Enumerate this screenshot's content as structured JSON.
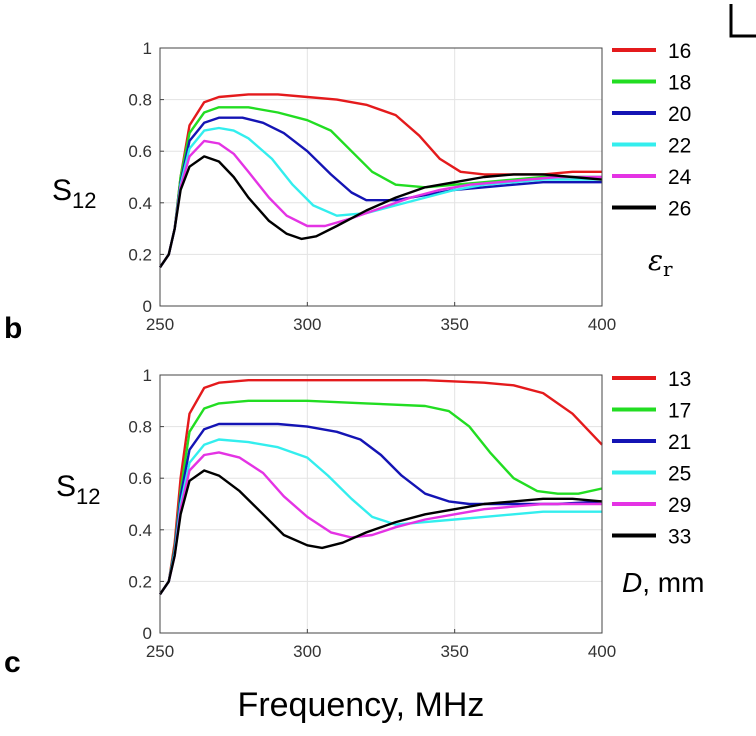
{
  "chart_data": [
    {
      "type": "line",
      "panel_label": "b",
      "ylabel_main": "S",
      "ylabel_sub": "12",
      "legend_title_symbol": "ε",
      "legend_title_sub": "r",
      "xlim": [
        250,
        400
      ],
      "ylim": [
        0,
        1
      ],
      "xticks": [
        250,
        300,
        350,
        400
      ],
      "yticks": [
        0,
        0.2,
        0.4,
        0.6,
        0.8,
        1
      ],
      "ytick_labels": [
        "0",
        "0.2",
        "0.4",
        "0.6",
        "0.8",
        "1"
      ],
      "grid": true,
      "legend_position": "right",
      "series": [
        {
          "name": "16",
          "color": "#e41a1c",
          "points": [
            [
              250,
              0.15
            ],
            [
              253,
              0.2
            ],
            [
              255,
              0.3
            ],
            [
              257,
              0.5
            ],
            [
              260,
              0.7
            ],
            [
              265,
              0.79
            ],
            [
              270,
              0.81
            ],
            [
              280,
              0.82
            ],
            [
              290,
              0.82
            ],
            [
              300,
              0.81
            ],
            [
              310,
              0.8
            ],
            [
              320,
              0.78
            ],
            [
              330,
              0.74
            ],
            [
              338,
              0.66
            ],
            [
              345,
              0.57
            ],
            [
              352,
              0.52
            ],
            [
              360,
              0.51
            ],
            [
              370,
              0.51
            ],
            [
              380,
              0.51
            ],
            [
              390,
              0.52
            ],
            [
              400,
              0.52
            ]
          ]
        },
        {
          "name": "18",
          "color": "#22dd22",
          "points": [
            [
              250,
              0.15
            ],
            [
              253,
              0.2
            ],
            [
              255,
              0.3
            ],
            [
              257,
              0.5
            ],
            [
              260,
              0.67
            ],
            [
              265,
              0.75
            ],
            [
              270,
              0.77
            ],
            [
              280,
              0.77
            ],
            [
              290,
              0.75
            ],
            [
              300,
              0.72
            ],
            [
              308,
              0.68
            ],
            [
              315,
              0.6
            ],
            [
              322,
              0.52
            ],
            [
              330,
              0.47
            ],
            [
              340,
              0.46
            ],
            [
              350,
              0.47
            ],
            [
              360,
              0.48
            ],
            [
              370,
              0.49
            ],
            [
              380,
              0.5
            ],
            [
              390,
              0.5
            ],
            [
              400,
              0.5
            ]
          ]
        },
        {
          "name": "20",
          "color": "#1414b4",
          "points": [
            [
              250,
              0.15
            ],
            [
              253,
              0.2
            ],
            [
              255,
              0.3
            ],
            [
              257,
              0.48
            ],
            [
              260,
              0.64
            ],
            [
              265,
              0.71
            ],
            [
              270,
              0.73
            ],
            [
              278,
              0.73
            ],
            [
              285,
              0.71
            ],
            [
              292,
              0.67
            ],
            [
              300,
              0.6
            ],
            [
              308,
              0.51
            ],
            [
              315,
              0.44
            ],
            [
              320,
              0.41
            ],
            [
              330,
              0.41
            ],
            [
              340,
              0.43
            ],
            [
              350,
              0.45
            ],
            [
              360,
              0.46
            ],
            [
              370,
              0.47
            ],
            [
              380,
              0.48
            ],
            [
              390,
              0.48
            ],
            [
              400,
              0.48
            ]
          ]
        },
        {
          "name": "22",
          "color": "#33eeee",
          "points": [
            [
              250,
              0.15
            ],
            [
              253,
              0.2
            ],
            [
              255,
              0.3
            ],
            [
              257,
              0.47
            ],
            [
              260,
              0.61
            ],
            [
              265,
              0.68
            ],
            [
              270,
              0.69
            ],
            [
              275,
              0.68
            ],
            [
              280,
              0.65
            ],
            [
              288,
              0.57
            ],
            [
              295,
              0.47
            ],
            [
              302,
              0.39
            ],
            [
              310,
              0.35
            ],
            [
              320,
              0.36
            ],
            [
              330,
              0.39
            ],
            [
              340,
              0.42
            ],
            [
              350,
              0.45
            ],
            [
              360,
              0.47
            ],
            [
              370,
              0.48
            ],
            [
              380,
              0.49
            ],
            [
              390,
              0.49
            ],
            [
              400,
              0.49
            ]
          ]
        },
        {
          "name": "24",
          "color": "#e433e4",
          "points": [
            [
              250,
              0.15
            ],
            [
              253,
              0.2
            ],
            [
              255,
              0.3
            ],
            [
              257,
              0.46
            ],
            [
              260,
              0.58
            ],
            [
              265,
              0.64
            ],
            [
              270,
              0.63
            ],
            [
              275,
              0.59
            ],
            [
              280,
              0.52
            ],
            [
              287,
              0.42
            ],
            [
              293,
              0.35
            ],
            [
              300,
              0.31
            ],
            [
              306,
              0.31
            ],
            [
              315,
              0.34
            ],
            [
              325,
              0.38
            ],
            [
              335,
              0.42
            ],
            [
              345,
              0.45
            ],
            [
              355,
              0.47
            ],
            [
              365,
              0.48
            ],
            [
              375,
              0.49
            ],
            [
              385,
              0.5
            ],
            [
              400,
              0.5
            ]
          ]
        },
        {
          "name": "26",
          "color": "#000000",
          "points": [
            [
              250,
              0.15
            ],
            [
              253,
              0.2
            ],
            [
              255,
              0.3
            ],
            [
              257,
              0.45
            ],
            [
              260,
              0.54
            ],
            [
              265,
              0.58
            ],
            [
              270,
              0.56
            ],
            [
              275,
              0.5
            ],
            [
              280,
              0.42
            ],
            [
              287,
              0.33
            ],
            [
              293,
              0.28
            ],
            [
              298,
              0.26
            ],
            [
              303,
              0.27
            ],
            [
              310,
              0.31
            ],
            [
              320,
              0.37
            ],
            [
              330,
              0.42
            ],
            [
              340,
              0.46
            ],
            [
              350,
              0.48
            ],
            [
              360,
              0.5
            ],
            [
              370,
              0.51
            ],
            [
              380,
              0.51
            ],
            [
              390,
              0.5
            ],
            [
              400,
              0.49
            ]
          ]
        }
      ]
    },
    {
      "type": "line",
      "panel_label": "c",
      "ylabel_main": "S",
      "ylabel_sub": "12",
      "legend_title_symbol": "D",
      "legend_title_rest": ", mm",
      "xlabel": "Frequency, MHz",
      "xlim": [
        250,
        400
      ],
      "ylim": [
        0,
        1
      ],
      "xticks": [
        250,
        300,
        350,
        400
      ],
      "yticks": [
        0,
        0.2,
        0.4,
        0.6,
        0.8,
        1
      ],
      "ytick_labels": [
        "0",
        "0.2",
        "0.4",
        "0.6",
        "0.8",
        "1"
      ],
      "grid": true,
      "legend_position": "right",
      "series": [
        {
          "name": "13",
          "color": "#e41a1c",
          "points": [
            [
              250,
              0.15
            ],
            [
              253,
              0.2
            ],
            [
              255,
              0.35
            ],
            [
              257,
              0.6
            ],
            [
              260,
              0.85
            ],
            [
              265,
              0.95
            ],
            [
              270,
              0.97
            ],
            [
              280,
              0.98
            ],
            [
              300,
              0.98
            ],
            [
              320,
              0.98
            ],
            [
              340,
              0.98
            ],
            [
              360,
              0.97
            ],
            [
              370,
              0.96
            ],
            [
              380,
              0.93
            ],
            [
              390,
              0.85
            ],
            [
              400,
              0.73
            ]
          ]
        },
        {
          "name": "17",
          "color": "#22dd22",
          "points": [
            [
              250,
              0.15
            ],
            [
              253,
              0.2
            ],
            [
              255,
              0.33
            ],
            [
              257,
              0.55
            ],
            [
              260,
              0.78
            ],
            [
              265,
              0.87
            ],
            [
              270,
              0.89
            ],
            [
              280,
              0.9
            ],
            [
              300,
              0.9
            ],
            [
              320,
              0.89
            ],
            [
              340,
              0.88
            ],
            [
              348,
              0.86
            ],
            [
              355,
              0.8
            ],
            [
              362,
              0.7
            ],
            [
              370,
              0.6
            ],
            [
              378,
              0.55
            ],
            [
              385,
              0.54
            ],
            [
              392,
              0.54
            ],
            [
              400,
              0.56
            ]
          ]
        },
        {
          "name": "21",
          "color": "#1414b4",
          "points": [
            [
              250,
              0.15
            ],
            [
              253,
              0.2
            ],
            [
              255,
              0.32
            ],
            [
              257,
              0.53
            ],
            [
              260,
              0.71
            ],
            [
              265,
              0.79
            ],
            [
              270,
              0.81
            ],
            [
              280,
              0.81
            ],
            [
              290,
              0.81
            ],
            [
              300,
              0.8
            ],
            [
              310,
              0.78
            ],
            [
              318,
              0.75
            ],
            [
              325,
              0.69
            ],
            [
              332,
              0.61
            ],
            [
              340,
              0.54
            ],
            [
              348,
              0.51
            ],
            [
              355,
              0.5
            ],
            [
              365,
              0.5
            ],
            [
              375,
              0.5
            ],
            [
              385,
              0.5
            ],
            [
              400,
              0.51
            ]
          ]
        },
        {
          "name": "25",
          "color": "#33eeee",
          "points": [
            [
              250,
              0.15
            ],
            [
              253,
              0.2
            ],
            [
              255,
              0.31
            ],
            [
              257,
              0.5
            ],
            [
              260,
              0.66
            ],
            [
              265,
              0.73
            ],
            [
              270,
              0.75
            ],
            [
              280,
              0.74
            ],
            [
              290,
              0.72
            ],
            [
              300,
              0.68
            ],
            [
              307,
              0.61
            ],
            [
              315,
              0.52
            ],
            [
              322,
              0.45
            ],
            [
              330,
              0.42
            ],
            [
              340,
              0.43
            ],
            [
              350,
              0.44
            ],
            [
              360,
              0.45
            ],
            [
              370,
              0.46
            ],
            [
              380,
              0.47
            ],
            [
              390,
              0.47
            ],
            [
              400,
              0.47
            ]
          ]
        },
        {
          "name": "29",
          "color": "#e433e4",
          "points": [
            [
              250,
              0.15
            ],
            [
              253,
              0.2
            ],
            [
              255,
              0.3
            ],
            [
              257,
              0.48
            ],
            [
              260,
              0.63
            ],
            [
              265,
              0.69
            ],
            [
              270,
              0.7
            ],
            [
              277,
              0.68
            ],
            [
              285,
              0.62
            ],
            [
              292,
              0.53
            ],
            [
              300,
              0.45
            ],
            [
              308,
              0.39
            ],
            [
              315,
              0.37
            ],
            [
              322,
              0.38
            ],
            [
              330,
              0.41
            ],
            [
              340,
              0.44
            ],
            [
              350,
              0.46
            ],
            [
              360,
              0.48
            ],
            [
              370,
              0.49
            ],
            [
              380,
              0.5
            ],
            [
              390,
              0.5
            ],
            [
              400,
              0.5
            ]
          ]
        },
        {
          "name": "33",
          "color": "#000000",
          "points": [
            [
              250,
              0.15
            ],
            [
              253,
              0.2
            ],
            [
              255,
              0.3
            ],
            [
              257,
              0.46
            ],
            [
              260,
              0.59
            ],
            [
              265,
              0.63
            ],
            [
              270,
              0.61
            ],
            [
              277,
              0.55
            ],
            [
              285,
              0.46
            ],
            [
              292,
              0.38
            ],
            [
              300,
              0.34
            ],
            [
              305,
              0.33
            ],
            [
              312,
              0.35
            ],
            [
              320,
              0.39
            ],
            [
              330,
              0.43
            ],
            [
              340,
              0.46
            ],
            [
              350,
              0.48
            ],
            [
              360,
              0.5
            ],
            [
              370,
              0.51
            ],
            [
              380,
              0.52
            ],
            [
              390,
              0.52
            ],
            [
              400,
              0.51
            ]
          ]
        }
      ]
    }
  ]
}
